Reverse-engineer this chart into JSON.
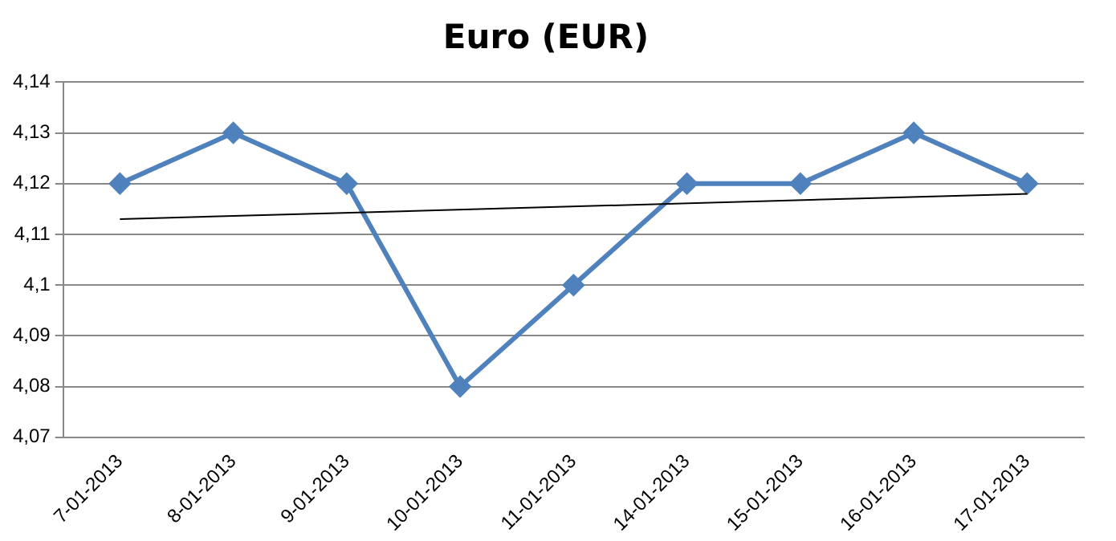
{
  "chart_data": {
    "type": "line",
    "title": "Euro (EUR)",
    "categories": [
      "7-01-2013",
      "8-01-2013",
      "9-01-2013",
      "10-01-2013",
      "11-01-2013",
      "14-01-2013",
      "15-01-2013",
      "16-01-2013",
      "17-01-2013"
    ],
    "series": [
      {
        "color": "#4f81bd",
        "values": [
          4.12,
          4.13,
          4.12,
          4.08,
          4.1,
          4.12,
          4.12,
          4.13,
          4.12
        ],
        "marker": "diamond"
      },
      {
        "type": "line",
        "color": "#000000",
        "x": [
          "7-01-2013",
          "17-01-2013"
        ],
        "values": [
          4.113,
          4.118
        ],
        "marker": "none"
      }
    ],
    "ylim": [
      4.07,
      4.14
    ],
    "yticks": [
      {
        "value": 4.07,
        "label": "4,07"
      },
      {
        "value": 4.08,
        "label": "4,08"
      },
      {
        "value": 4.09,
        "label": "4,09"
      },
      {
        "value": 4.1,
        "label": "4,1"
      },
      {
        "value": 4.11,
        "label": "4,11"
      },
      {
        "value": 4.12,
        "label": "4,12"
      },
      {
        "value": 4.13,
        "label": "4,13"
      },
      {
        "value": 4.14,
        "label": "4,14"
      }
    ],
    "grid": "y",
    "legend": false
  }
}
